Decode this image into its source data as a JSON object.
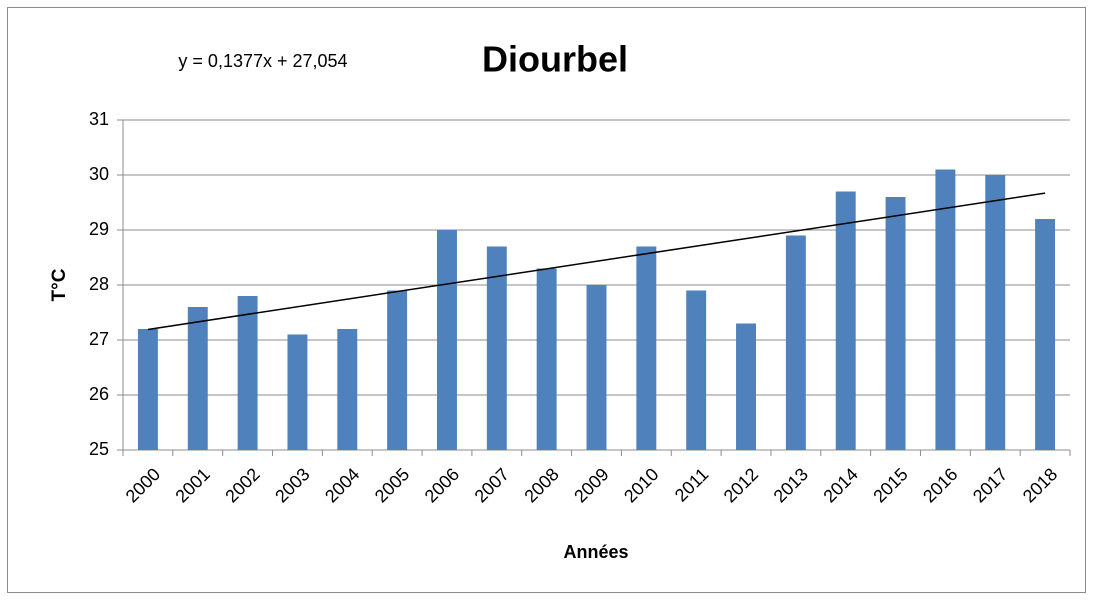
{
  "chart_data": {
    "type": "bar",
    "title": "Diourbel",
    "x_label": "Années",
    "y_label": "T°C",
    "categories": [
      "2000",
      "2001",
      "2002",
      "2003",
      "2004",
      "2005",
      "2006",
      "2007",
      "2008",
      "2009",
      "2010",
      "2011",
      "2012",
      "2013",
      "2014",
      "2015",
      "2016",
      "2017",
      "2018"
    ],
    "values": [
      27.2,
      27.6,
      27.8,
      27.1,
      27.2,
      27.9,
      29,
      28.7,
      28.3,
      28,
      28.7,
      27.9,
      27.3,
      28.9,
      29.7,
      29.6,
      30.1,
      30,
      29.2
    ],
    "color": "#4f81bd",
    "ylim": [
      25,
      31
    ],
    "yticks": [
      25,
      26,
      27,
      28,
      29,
      30,
      31
    ],
    "grid": true,
    "trendline": {
      "label": "y = 0,1377x + 27,054",
      "slope": 0.1377,
      "intercept": 27.054,
      "color": "#000000"
    }
  }
}
